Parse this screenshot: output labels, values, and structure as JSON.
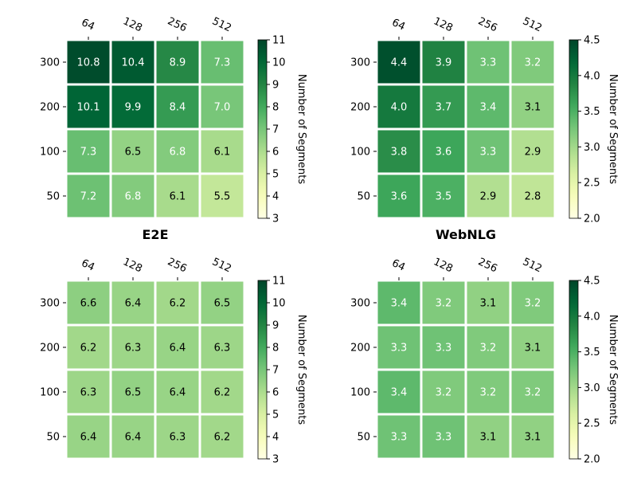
{
  "chart_data": [
    {
      "type": "heatmap",
      "title": "",
      "x_categories": [
        "64",
        "128",
        "256",
        "512"
      ],
      "y_categories": [
        "300",
        "200",
        "100",
        "50"
      ],
      "values": [
        [
          10.8,
          10.4,
          8.9,
          7.3
        ],
        [
          10.1,
          9.9,
          8.4,
          7.0
        ],
        [
          7.3,
          6.5,
          6.8,
          6.1
        ],
        [
          7.2,
          6.8,
          6.1,
          5.5
        ]
      ],
      "colorbar": {
        "label": "Number of Segments",
        "range": [
          3,
          11
        ],
        "ticks": [
          "3",
          "4",
          "5",
          "6",
          "7",
          "8",
          "9",
          "10",
          "11"
        ],
        "colormap": "YlGn"
      }
    },
    {
      "type": "heatmap",
      "title": "",
      "x_categories": [
        "64",
        "128",
        "256",
        "512"
      ],
      "y_categories": [
        "300",
        "200",
        "100",
        "50"
      ],
      "values": [
        [
          4.4,
          3.9,
          3.3,
          3.2
        ],
        [
          4.0,
          3.7,
          3.4,
          3.1
        ],
        [
          3.8,
          3.6,
          3.3,
          2.9
        ],
        [
          3.6,
          3.5,
          2.9,
          2.8
        ]
      ],
      "colorbar": {
        "label": "Number of Segments",
        "range": [
          2.0,
          4.5
        ],
        "ticks": [
          "2.0",
          "2.5",
          "3.0",
          "3.5",
          "4.0",
          "4.5"
        ],
        "colormap": "YlGn"
      }
    },
    {
      "type": "heatmap",
      "title": "E2E",
      "x_categories": [
        "64",
        "128",
        "256",
        "512"
      ],
      "y_categories": [
        "300",
        "200",
        "100",
        "50"
      ],
      "values": [
        [
          6.6,
          6.4,
          6.2,
          6.5
        ],
        [
          6.2,
          6.3,
          6.4,
          6.3
        ],
        [
          6.3,
          6.5,
          6.4,
          6.2
        ],
        [
          6.4,
          6.4,
          6.3,
          6.2
        ]
      ],
      "colorbar": {
        "label": "Number of Segments",
        "range": [
          3,
          11
        ],
        "ticks": [
          "3",
          "4",
          "5",
          "6",
          "7",
          "8",
          "9",
          "10",
          "11"
        ],
        "colormap": "YlGn"
      }
    },
    {
      "type": "heatmap",
      "title": "WebNLG",
      "x_categories": [
        "64",
        "128",
        "256",
        "512"
      ],
      "y_categories": [
        "300",
        "200",
        "100",
        "50"
      ],
      "values": [
        [
          3.4,
          3.2,
          3.1,
          3.2
        ],
        [
          3.3,
          3.3,
          3.2,
          3.1
        ],
        [
          3.4,
          3.2,
          3.2,
          3.2
        ],
        [
          3.3,
          3.3,
          3.1,
          3.1
        ]
      ],
      "colorbar": {
        "label": "Number of Segments",
        "range": [
          2.0,
          4.5
        ],
        "ticks": [
          "2.0",
          "2.5",
          "3.0",
          "3.5",
          "4.0",
          "4.5"
        ],
        "colormap": "YlGn"
      }
    }
  ]
}
